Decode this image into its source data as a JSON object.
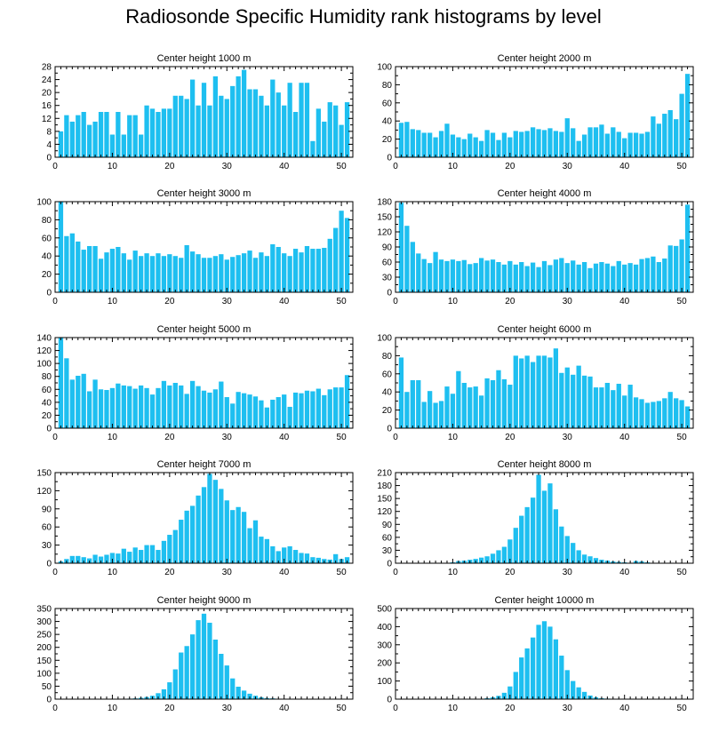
{
  "title": "Radiosonde Specific Humidity rank histograms by level",
  "chart_data": [
    {
      "type": "bar",
      "title": "Center height 1000 m",
      "xlabel": "",
      "ylabel": "",
      "xlim": [
        0,
        52
      ],
      "ylim": [
        0,
        28
      ],
      "xticks": [
        0,
        10,
        20,
        30,
        40,
        50
      ],
      "yticks": [
        0,
        4,
        8,
        12,
        16,
        20,
        24,
        28
      ],
      "x": [
        1,
        2,
        3,
        4,
        5,
        6,
        7,
        8,
        9,
        10,
        11,
        12,
        13,
        14,
        15,
        16,
        17,
        18,
        19,
        20,
        21,
        22,
        23,
        24,
        25,
        26,
        27,
        28,
        29,
        30,
        31,
        32,
        33,
        34,
        35,
        36,
        37,
        38,
        39,
        40,
        41,
        42,
        43,
        44,
        45,
        46,
        47,
        48,
        49,
        50,
        51
      ],
      "values": [
        8,
        13,
        11,
        13,
        14,
        10,
        11,
        14,
        14,
        7,
        14,
        7,
        13,
        13,
        7,
        16,
        15,
        14,
        15,
        15,
        19,
        19,
        18,
        24,
        16,
        23,
        16,
        25,
        19,
        18,
        22,
        25,
        27,
        21,
        21,
        19,
        16,
        24,
        20,
        16,
        23,
        14,
        23,
        23,
        5,
        15,
        11,
        17,
        16,
        10,
        17
      ]
    },
    {
      "type": "bar",
      "title": "Center height 2000 m",
      "xlabel": "",
      "ylabel": "",
      "xlim": [
        0,
        52
      ],
      "ylim": [
        0,
        100
      ],
      "xticks": [
        0,
        10,
        20,
        30,
        40,
        50
      ],
      "yticks": [
        0,
        20,
        40,
        60,
        80,
        100
      ],
      "x": [
        1,
        2,
        3,
        4,
        5,
        6,
        7,
        8,
        9,
        10,
        11,
        12,
        13,
        14,
        15,
        16,
        17,
        18,
        19,
        20,
        21,
        22,
        23,
        24,
        25,
        26,
        27,
        28,
        29,
        30,
        31,
        32,
        33,
        34,
        35,
        36,
        37,
        38,
        39,
        40,
        41,
        42,
        43,
        44,
        45,
        46,
        47,
        48,
        49,
        50,
        51
      ],
      "values": [
        38,
        39,
        31,
        30,
        27,
        27,
        22,
        29,
        37,
        25,
        22,
        20,
        26,
        22,
        18,
        30,
        27,
        19,
        27,
        22,
        29,
        28,
        29,
        33,
        31,
        30,
        32,
        29,
        28,
        43,
        32,
        18,
        25,
        33,
        33,
        36,
        26,
        33,
        28,
        21,
        27,
        27,
        26,
        28,
        45,
        37,
        48,
        52,
        42,
        70,
        92
      ]
    },
    {
      "type": "bar",
      "title": "Center height 3000 m",
      "xlabel": "",
      "ylabel": "",
      "xlim": [
        0,
        52
      ],
      "ylim": [
        0,
        100
      ],
      "xticks": [
        0,
        10,
        20,
        30,
        40,
        50
      ],
      "yticks": [
        0,
        20,
        40,
        60,
        80,
        100
      ],
      "x": [
        1,
        2,
        3,
        4,
        5,
        6,
        7,
        8,
        9,
        10,
        11,
        12,
        13,
        14,
        15,
        16,
        17,
        18,
        19,
        20,
        21,
        22,
        23,
        24,
        25,
        26,
        27,
        28,
        29,
        30,
        31,
        32,
        33,
        34,
        35,
        36,
        37,
        38,
        39,
        40,
        41,
        42,
        43,
        44,
        45,
        46,
        47,
        48,
        49,
        50,
        51
      ],
      "values": [
        100,
        62,
        65,
        56,
        47,
        51,
        51,
        37,
        44,
        48,
        50,
        43,
        36,
        46,
        40,
        43,
        40,
        43,
        40,
        42,
        40,
        38,
        52,
        45,
        42,
        38,
        38,
        40,
        42,
        36,
        39,
        41,
        43,
        46,
        38,
        44,
        40,
        53,
        50,
        43,
        40,
        48,
        44,
        51,
        48,
        48,
        49,
        59,
        71,
        90,
        82
      ]
    },
    {
      "type": "bar",
      "title": "Center height 4000 m",
      "xlabel": "",
      "ylabel": "",
      "xlim": [
        0,
        52
      ],
      "ylim": [
        0,
        180
      ],
      "xticks": [
        0,
        10,
        20,
        30,
        40,
        50
      ],
      "yticks": [
        0,
        30,
        60,
        90,
        120,
        150,
        180
      ],
      "x": [
        1,
        2,
        3,
        4,
        5,
        6,
        7,
        8,
        9,
        10,
        11,
        12,
        13,
        14,
        15,
        16,
        17,
        18,
        19,
        20,
        21,
        22,
        23,
        24,
        25,
        26,
        27,
        28,
        29,
        30,
        31,
        32,
        33,
        34,
        35,
        36,
        37,
        38,
        39,
        40,
        41,
        42,
        43,
        44,
        45,
        46,
        47,
        48,
        49,
        50,
        51
      ],
      "values": [
        178,
        132,
        100,
        77,
        66,
        58,
        80,
        65,
        62,
        65,
        62,
        64,
        56,
        58,
        68,
        63,
        65,
        60,
        55,
        62,
        55,
        60,
        52,
        59,
        50,
        62,
        54,
        65,
        68,
        58,
        63,
        55,
        60,
        48,
        57,
        60,
        57,
        52,
        62,
        55,
        58,
        55,
        66,
        68,
        71,
        60,
        67,
        93,
        92,
        105,
        174
      ]
    },
    {
      "type": "bar",
      "title": "Center height 5000 m",
      "xlabel": "",
      "ylabel": "",
      "xlim": [
        0,
        52
      ],
      "ylim": [
        0,
        140
      ],
      "xticks": [
        0,
        10,
        20,
        30,
        40,
        50
      ],
      "yticks": [
        0,
        20,
        40,
        60,
        80,
        100,
        120,
        140
      ],
      "x": [
        1,
        2,
        3,
        4,
        5,
        6,
        7,
        8,
        9,
        10,
        11,
        12,
        13,
        14,
        15,
        16,
        17,
        18,
        19,
        20,
        21,
        22,
        23,
        24,
        25,
        26,
        27,
        28,
        29,
        30,
        31,
        32,
        33,
        34,
        35,
        36,
        37,
        38,
        39,
        40,
        41,
        42,
        43,
        44,
        45,
        46,
        47,
        48,
        49,
        50,
        51
      ],
      "values": [
        140,
        108,
        75,
        81,
        84,
        57,
        75,
        60,
        59,
        62,
        69,
        66,
        65,
        61,
        66,
        62,
        52,
        62,
        73,
        66,
        70,
        66,
        53,
        73,
        65,
        58,
        55,
        60,
        72,
        48,
        38,
        56,
        54,
        52,
        49,
        43,
        32,
        44,
        48,
        52,
        33,
        55,
        54,
        58,
        57,
        61,
        51,
        60,
        63,
        63,
        82
      ]
    },
    {
      "type": "bar",
      "title": "Center height 6000 m",
      "xlabel": "",
      "ylabel": "",
      "xlim": [
        0,
        52
      ],
      "ylim": [
        0,
        100
      ],
      "xticks": [
        0,
        10,
        20,
        30,
        40,
        50
      ],
      "yticks": [
        0,
        20,
        40,
        60,
        80,
        100
      ],
      "x": [
        1,
        2,
        3,
        4,
        5,
        6,
        7,
        8,
        9,
        10,
        11,
        12,
        13,
        14,
        15,
        16,
        17,
        18,
        19,
        20,
        21,
        22,
        23,
        24,
        25,
        26,
        27,
        28,
        29,
        30,
        31,
        32,
        33,
        34,
        35,
        36,
        37,
        38,
        39,
        40,
        41,
        42,
        43,
        44,
        45,
        46,
        47,
        48,
        49,
        50,
        51
      ],
      "values": [
        78,
        40,
        53,
        53,
        29,
        41,
        28,
        30,
        46,
        38,
        63,
        50,
        45,
        46,
        36,
        55,
        53,
        64,
        54,
        48,
        80,
        77,
        80,
        73,
        80,
        80,
        78,
        88,
        61,
        67,
        59,
        69,
        58,
        57,
        45,
        45,
        50,
        42,
        49,
        36,
        48,
        34,
        32,
        28,
        29,
        30,
        33,
        40,
        33,
        31,
        24
      ]
    },
    {
      "type": "bar",
      "title": "Center height 7000 m",
      "xlabel": "",
      "ylabel": "",
      "xlim": [
        0,
        52
      ],
      "ylim": [
        0,
        150
      ],
      "xticks": [
        0,
        10,
        20,
        30,
        40,
        50
      ],
      "yticks": [
        0,
        30,
        60,
        90,
        120,
        150
      ],
      "x": [
        1,
        2,
        3,
        4,
        5,
        6,
        7,
        8,
        9,
        10,
        11,
        12,
        13,
        14,
        15,
        16,
        17,
        18,
        19,
        20,
        21,
        22,
        23,
        24,
        25,
        26,
        27,
        28,
        29,
        30,
        31,
        32,
        33,
        34,
        35,
        36,
        37,
        38,
        39,
        40,
        41,
        42,
        43,
        44,
        45,
        46,
        47,
        48,
        49,
        50,
        51
      ],
      "values": [
        3,
        7,
        12,
        12,
        10,
        8,
        14,
        11,
        14,
        17,
        16,
        24,
        19,
        26,
        22,
        30,
        30,
        22,
        37,
        47,
        55,
        72,
        87,
        95,
        112,
        126,
        148,
        138,
        123,
        104,
        88,
        93,
        85,
        58,
        71,
        44,
        40,
        28,
        20,
        26,
        28,
        22,
        17,
        16,
        10,
        9,
        7,
        6,
        15,
        7,
        10
      ]
    },
    {
      "type": "bar",
      "title": "Center height 8000 m",
      "xlabel": "",
      "ylabel": "",
      "xlim": [
        0,
        52
      ],
      "ylim": [
        0,
        210
      ],
      "xticks": [
        0,
        10,
        20,
        30,
        40,
        50
      ],
      "yticks": [
        0,
        30,
        60,
        90,
        120,
        150,
        180,
        210
      ],
      "x": [
        1,
        2,
        3,
        4,
        5,
        6,
        7,
        8,
        9,
        10,
        11,
        12,
        13,
        14,
        15,
        16,
        17,
        18,
        19,
        20,
        21,
        22,
        23,
        24,
        25,
        26,
        27,
        28,
        29,
        30,
        31,
        32,
        33,
        34,
        35,
        36,
        37,
        38,
        39,
        40,
        41,
        42,
        43,
        44,
        45,
        46,
        47,
        48,
        49,
        50,
        51
      ],
      "values": [
        0,
        0,
        0,
        0,
        0,
        0,
        0,
        0,
        1,
        2,
        5,
        6,
        8,
        10,
        13,
        16,
        22,
        30,
        38,
        55,
        82,
        110,
        130,
        152,
        205,
        168,
        185,
        125,
        85,
        63,
        47,
        30,
        20,
        16,
        12,
        8,
        6,
        4,
        3,
        2,
        1,
        5,
        4,
        2,
        1,
        1,
        0,
        0,
        0,
        0,
        0
      ]
    },
    {
      "type": "bar",
      "title": "Center height 9000 m",
      "xlabel": "",
      "ylabel": "",
      "xlim": [
        0,
        52
      ],
      "ylim": [
        0,
        350
      ],
      "xticks": [
        0,
        10,
        20,
        30,
        40,
        50
      ],
      "yticks": [
        0,
        50,
        100,
        150,
        200,
        250,
        300,
        350
      ],
      "x": [
        1,
        2,
        3,
        4,
        5,
        6,
        7,
        8,
        9,
        10,
        11,
        12,
        13,
        14,
        15,
        16,
        17,
        18,
        19,
        20,
        21,
        22,
        23,
        24,
        25,
        26,
        27,
        28,
        29,
        30,
        31,
        32,
        33,
        34,
        35,
        36,
        37,
        38,
        39,
        40,
        41,
        42,
        43,
        44,
        45,
        46,
        47,
        48,
        49,
        50,
        51
      ],
      "values": [
        0,
        0,
        0,
        0,
        0,
        0,
        0,
        0,
        0,
        0,
        0,
        1,
        2,
        3,
        5,
        8,
        13,
        23,
        38,
        65,
        115,
        180,
        205,
        250,
        305,
        330,
        295,
        230,
        175,
        130,
        80,
        48,
        33,
        21,
        13,
        7,
        4,
        3,
        1,
        1,
        0,
        0,
        0,
        0,
        0,
        0,
        0,
        0,
        0,
        0,
        0
      ]
    },
    {
      "type": "bar",
      "title": "Center height 10000 m",
      "xlabel": "",
      "ylabel": "",
      "xlim": [
        0,
        52
      ],
      "ylim": [
        0,
        500
      ],
      "xticks": [
        0,
        10,
        20,
        30,
        40,
        50
      ],
      "yticks": [
        0,
        100,
        200,
        300,
        400,
        500
      ],
      "x": [
        1,
        2,
        3,
        4,
        5,
        6,
        7,
        8,
        9,
        10,
        11,
        12,
        13,
        14,
        15,
        16,
        17,
        18,
        19,
        20,
        21,
        22,
        23,
        24,
        25,
        26,
        27,
        28,
        29,
        30,
        31,
        32,
        33,
        34,
        35,
        36,
        37,
        38,
        39,
        40,
        41,
        42,
        43,
        44,
        45,
        46,
        47,
        48,
        49,
        50,
        51
      ],
      "values": [
        0,
        0,
        0,
        0,
        0,
        0,
        0,
        0,
        0,
        0,
        0,
        0,
        0,
        0,
        2,
        5,
        10,
        18,
        35,
        70,
        150,
        230,
        280,
        340,
        410,
        430,
        400,
        330,
        240,
        160,
        100,
        65,
        40,
        20,
        10,
        5,
        3,
        2,
        1,
        1,
        1,
        0,
        0,
        0,
        0,
        0,
        0,
        0,
        0,
        0,
        0
      ]
    }
  ],
  "style": {
    "bar_color": "#1ebff0",
    "axis_color": "#000000",
    "background": "#ffffff"
  }
}
